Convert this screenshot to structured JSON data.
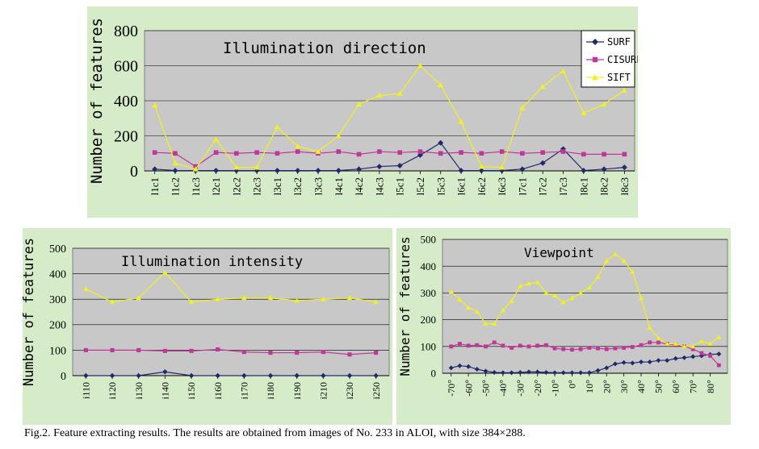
{
  "caption": "Fig.2. Feature extracting results. The results are obtained from images of No. 233 in ALOI, with size 384×288.",
  "colors": {
    "SURF": "#1f2a6b",
    "CISURF": "#c0369b",
    "SIFT": "#f2f21c",
    "panel": "#d6ecc8",
    "plot": "#c8c8c8"
  },
  "chart_data": [
    {
      "type": "line",
      "title": "Illumination direction",
      "ylabel": "Number of features",
      "xlabel": "",
      "ylim": [
        0,
        800
      ],
      "yticks": [
        0,
        200,
        400,
        600,
        800
      ],
      "grid": true,
      "legend": "top-right",
      "categories": [
        "l1c1",
        "l1c2",
        "l1c3",
        "l2c1",
        "l2c2",
        "l2c3",
        "l3c1",
        "l3c2",
        "l3c3",
        "l4c1",
        "l4c2",
        "l4c3",
        "l5c1",
        "l5c2",
        "l5c3",
        "l6c1",
        "l6c2",
        "l6c3",
        "l7c1",
        "l7c2",
        "l7c3",
        "l8c1",
        "l8c2",
        "l8c3"
      ],
      "series": [
        {
          "name": "SURF",
          "marker": "diamond",
          "values": [
            10,
            2,
            2,
            2,
            2,
            2,
            2,
            2,
            2,
            2,
            10,
            25,
            30,
            90,
            160,
            2,
            2,
            2,
            10,
            45,
            125,
            2,
            10,
            20
          ]
        },
        {
          "name": "CISURF",
          "marker": "square",
          "values": [
            105,
            100,
            25,
            105,
            100,
            105,
            100,
            110,
            100,
            110,
            95,
            110,
            105,
            110,
            100,
            105,
            100,
            110,
            100,
            105,
            110,
            95,
            95,
            95
          ]
        },
        {
          "name": "SIFT",
          "marker": "triangle",
          "values": [
            375,
            45,
            10,
            180,
            20,
            20,
            250,
            140,
            110,
            200,
            380,
            430,
            440,
            600,
            490,
            280,
            25,
            20,
            360,
            480,
            570,
            330,
            380,
            460
          ]
        }
      ]
    },
    {
      "type": "line",
      "title": "Illumination intensity",
      "ylabel": "Number of features",
      "xlabel": "",
      "ylim": [
        0,
        500
      ],
      "yticks": [
        0,
        100,
        200,
        300,
        400,
        500
      ],
      "grid": true,
      "categories": [
        "i110",
        "i120",
        "i130",
        "i140",
        "i150",
        "i160",
        "i170",
        "i180",
        "i190",
        "i210",
        "i230",
        "i250"
      ],
      "series": [
        {
          "name": "SURF",
          "marker": "diamond",
          "values": [
            0,
            0,
            0,
            15,
            0,
            0,
            0,
            0,
            0,
            0,
            0,
            0
          ]
        },
        {
          "name": "CISURF",
          "marker": "square",
          "values": [
            100,
            100,
            100,
            97,
            97,
            103,
            93,
            90,
            90,
            93,
            83,
            90
          ]
        },
        {
          "name": "SIFT",
          "marker": "triangle",
          "values": [
            340,
            290,
            305,
            405,
            290,
            300,
            305,
            305,
            295,
            300,
            305,
            290
          ]
        }
      ]
    },
    {
      "type": "line",
      "title": "Viewpoint",
      "ylabel": "Number of features",
      "xlabel": "",
      "ylim": [
        0,
        500
      ],
      "yticks": [
        0,
        100,
        200,
        300,
        400,
        500
      ],
      "grid": true,
      "x": [
        -70,
        -65,
        -60,
        -55,
        -50,
        -45,
        -40,
        -35,
        -30,
        -25,
        -20,
        -15,
        -10,
        -5,
        0,
        5,
        10,
        15,
        20,
        25,
        30,
        35,
        40,
        45,
        50,
        55,
        60,
        65,
        70,
        75,
        80,
        85
      ],
      "xticks": [
        -70,
        -60,
        -50,
        -40,
        -30,
        -20,
        -10,
        0,
        10,
        20,
        30,
        40,
        50,
        60,
        70,
        80
      ],
      "xtick_labels": [
        "-70°",
        "-60°",
        "-50°",
        "-40°",
        "-30°",
        "-20°",
        "-10°",
        "0°",
        "10°",
        "20°",
        "30°",
        "40°",
        "50°",
        "60°",
        "70°",
        "80°"
      ],
      "series": [
        {
          "name": "SURF",
          "marker": "diamond",
          "values": [
            20,
            28,
            25,
            15,
            8,
            3,
            2,
            2,
            3,
            5,
            5,
            3,
            2,
            2,
            2,
            2,
            2,
            10,
            20,
            35,
            40,
            38,
            42,
            42,
            48,
            48,
            55,
            58,
            62,
            65,
            70,
            72
          ]
        },
        {
          "name": "CISURF",
          "marker": "square",
          "values": [
            100,
            110,
            103,
            105,
            100,
            115,
            103,
            95,
            103,
            100,
            103,
            105,
            93,
            90,
            88,
            90,
            95,
            93,
            90,
            93,
            95,
            98,
            105,
            115,
            115,
            110,
            105,
            100,
            90,
            75,
            65,
            30
          ]
        },
        {
          "name": "SIFT",
          "marker": "triangle",
          "values": [
            305,
            275,
            245,
            230,
            185,
            185,
            235,
            270,
            325,
            335,
            340,
            300,
            290,
            265,
            280,
            300,
            320,
            360,
            420,
            445,
            420,
            380,
            280,
            170,
            130,
            110,
            110,
            100,
            100,
            120,
            110,
            135
          ]
        }
      ]
    }
  ]
}
